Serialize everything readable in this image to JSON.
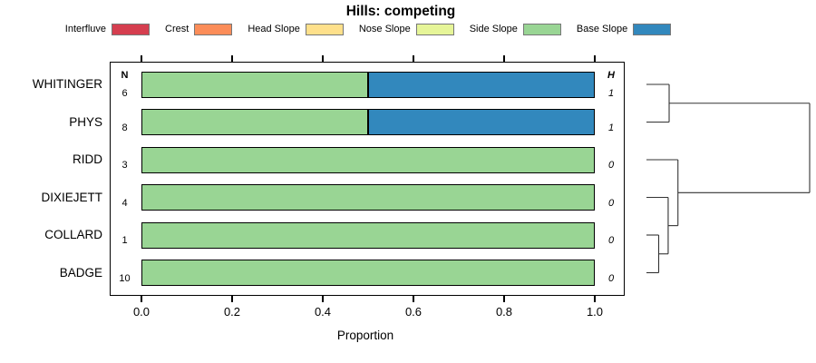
{
  "title": "Hills: competing",
  "legend": {
    "items": [
      {
        "label": "Interfluve",
        "color": "#D53E4F"
      },
      {
        "label": "Crest",
        "color": "#FC8D59"
      },
      {
        "label": "Head Slope",
        "color": "#FEE08B"
      },
      {
        "label": "Nose Slope",
        "color": "#E6F598"
      },
      {
        "label": "Side Slope",
        "color": "#99D594"
      },
      {
        "label": "Base Slope",
        "color": "#3288BD"
      }
    ]
  },
  "chart_data": {
    "type": "bar",
    "orientation": "horizontal-stacked",
    "title": "Hills: competing",
    "xlabel": "Proportion",
    "xlim": [
      0,
      1
    ],
    "x_ticks": [
      "0.0",
      "0.2",
      "0.4",
      "0.6",
      "0.8",
      "1.0"
    ],
    "x_tick_values": [
      0.0,
      0.2,
      0.4,
      0.6,
      0.8,
      1.0
    ],
    "grid": false,
    "legend_position": "top",
    "series_names": [
      "Interfluve",
      "Crest",
      "Head Slope",
      "Nose Slope",
      "Side Slope",
      "Base Slope"
    ],
    "series_colors": [
      "#D53E4F",
      "#FC8D59",
      "#FEE08B",
      "#E6F598",
      "#99D594",
      "#3288BD"
    ],
    "columns": {
      "n_header": "N",
      "h_header": "H"
    },
    "rows": [
      {
        "label": "WHITINGER",
        "n": "6",
        "h": "1",
        "segments": [
          {
            "name": "Side Slope",
            "value": 0.5
          },
          {
            "name": "Base Slope",
            "value": 0.5
          }
        ]
      },
      {
        "label": "PHYS",
        "n": "8",
        "h": "1",
        "segments": [
          {
            "name": "Side Slope",
            "value": 0.5
          },
          {
            "name": "Base Slope",
            "value": 0.5
          }
        ]
      },
      {
        "label": "RIDD",
        "n": "3",
        "h": "0",
        "segments": [
          {
            "name": "Side Slope",
            "value": 1.0
          }
        ]
      },
      {
        "label": "DIXIEJETT",
        "n": "4",
        "h": "0",
        "segments": [
          {
            "name": "Side Slope",
            "value": 1.0
          }
        ]
      },
      {
        "label": "COLLARD",
        "n": "1",
        "h": "0",
        "segments": [
          {
            "name": "Side Slope",
            "value": 1.0
          }
        ]
      },
      {
        "label": "BADGE",
        "n": "10",
        "h": "0",
        "segments": [
          {
            "name": "Side Slope",
            "value": 1.0
          }
        ]
      }
    ],
    "dendrogram": {
      "leaf_order": [
        "WHITINGER",
        "PHYS",
        "RIDD",
        "DIXIEJETT",
        "COLLARD",
        "BADGE"
      ],
      "tree": {
        "height": 1.0,
        "children": [
          {
            "height": 0.139,
            "children": [
              {
                "leaf": "WHITINGER"
              },
              {
                "leaf": "PHYS"
              }
            ]
          },
          {
            "height": 0.193,
            "children": [
              {
                "leaf": "RIDD"
              },
              {
                "height": 0.133,
                "children": [
                  {
                    "leaf": "DIXIEJETT"
                  },
                  {
                    "height": 0.075,
                    "children": [
                      {
                        "leaf": "COLLARD"
                      },
                      {
                        "leaf": "BADGE"
                      }
                    ]
                  }
                ]
              }
            ]
          }
        ]
      }
    }
  }
}
